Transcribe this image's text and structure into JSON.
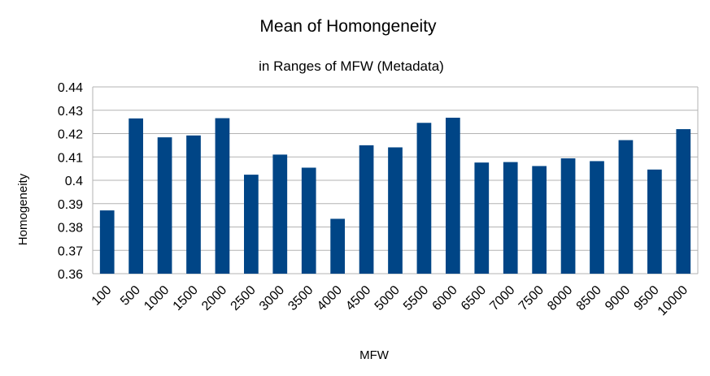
{
  "chart_data": {
    "type": "bar",
    "title": "Mean of Homongeneity",
    "subtitle": "in Ranges of MFW (Metadata)",
    "xlabel": "MFW",
    "ylabel": "Homogeneity",
    "ylim": [
      0.36,
      0.44
    ],
    "yticks": [
      0.36,
      0.37,
      0.38,
      0.39,
      0.4,
      0.41,
      0.42,
      0.43,
      0.44
    ],
    "ytick_labels": [
      "0.36",
      "0.37",
      "0.38",
      "0.39",
      "0.4",
      "0.41",
      "0.42",
      "0.43",
      "0.44"
    ],
    "grid": true,
    "legend": "none",
    "bar_color": "#004586",
    "categories": [
      "100",
      "500",
      "1000",
      "1500",
      "2000",
      "2500",
      "3000",
      "3500",
      "4000",
      "4500",
      "5000",
      "5500",
      "6000",
      "6500",
      "7000",
      "7500",
      "8000",
      "8500",
      "9000",
      "9500",
      "10000"
    ],
    "values": [
      0.3871,
      0.4265,
      0.4184,
      0.4192,
      0.4266,
      0.4024,
      0.411,
      0.4054,
      0.3835,
      0.415,
      0.4141,
      0.4246,
      0.4268,
      0.4076,
      0.4078,
      0.4061,
      0.4094,
      0.4082,
      0.4172,
      0.4046,
      0.4219
    ]
  }
}
